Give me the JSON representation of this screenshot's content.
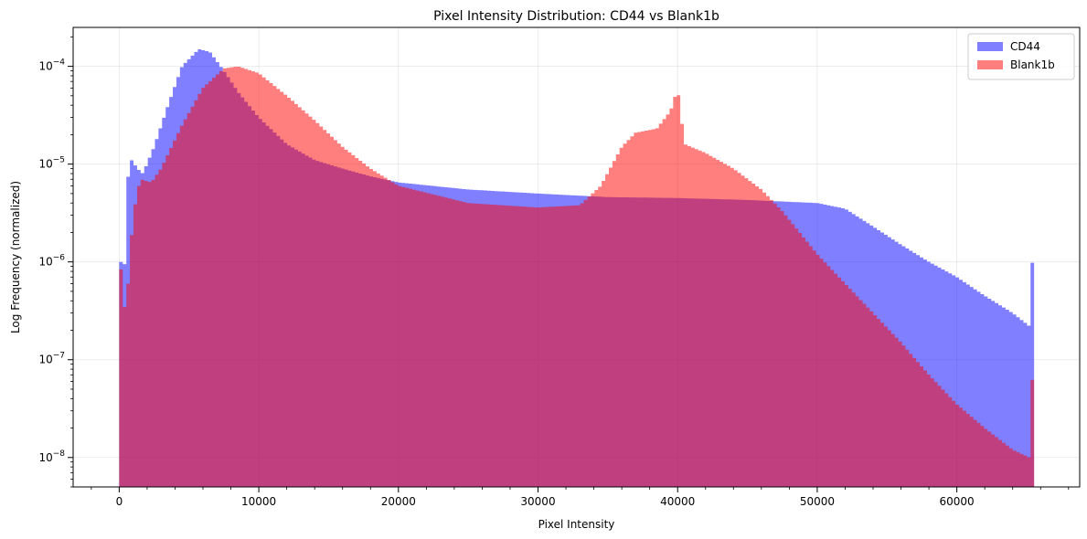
{
  "chart_data": {
    "type": "histogram",
    "title": "Pixel Intensity Distribution: CD44 vs Blank1b",
    "xlabel": "Pixel Intensity",
    "ylabel": "Log Frequency (normalized)",
    "x_scale": "linear",
    "y_scale": "log",
    "xlim": [
      -3300,
      68800
    ],
    "ylim": [
      5e-09,
      0.00025
    ],
    "x_ticks": [
      0,
      10000,
      20000,
      30000,
      40000,
      50000,
      60000
    ],
    "x_tick_labels": [
      "0",
      "10000",
      "20000",
      "30000",
      "40000",
      "50000",
      "60000"
    ],
    "y_ticks": [
      1e-08,
      1e-07,
      1e-06,
      1e-05,
      0.0001
    ],
    "y_tick_labels": [
      {
        "base": "10",
        "exp": "−8"
      },
      {
        "base": "10",
        "exp": "−7"
      },
      {
        "base": "10",
        "exp": "−6"
      },
      {
        "base": "10",
        "exp": "−5"
      },
      {
        "base": "10",
        "exp": "−4"
      }
    ],
    "grid": true,
    "legend_position": "top-right",
    "bin_range": [
      0,
      65535
    ],
    "bin_width": 256,
    "series": [
      {
        "name": "CD44",
        "color": "#0000ff",
        "alpha": 0.5,
        "points": [
          [
            0,
            2.8e-06
          ],
          [
            300,
            2.5e-07
          ],
          [
            500,
            6e-06
          ],
          [
            900,
            1.1e-05
          ],
          [
            1300,
            9e-06
          ],
          [
            1700,
            8e-06
          ],
          [
            2500,
            1.5e-05
          ],
          [
            3500,
            4e-05
          ],
          [
            4500,
            0.0001
          ],
          [
            5700,
            0.00015
          ],
          [
            6500,
            0.00014
          ],
          [
            7500,
            9e-05
          ],
          [
            8500,
            5.5e-05
          ],
          [
            10000,
            3e-05
          ],
          [
            12000,
            1.6e-05
          ],
          [
            14000,
            1.1e-05
          ],
          [
            16000,
            9e-06
          ],
          [
            18000,
            7.5e-06
          ],
          [
            20000,
            6.5e-06
          ],
          [
            25000,
            5.5e-06
          ],
          [
            30000,
            5e-06
          ],
          [
            35000,
            4.6e-06
          ],
          [
            40000,
            4.5e-06
          ],
          [
            45000,
            4.3e-06
          ],
          [
            50000,
            4e-06
          ],
          [
            52000,
            3.5e-06
          ],
          [
            54000,
            2.3e-06
          ],
          [
            56000,
            1.5e-06
          ],
          [
            58000,
            1e-06
          ],
          [
            60000,
            7e-07
          ],
          [
            62000,
            4.5e-07
          ],
          [
            64000,
            3e-07
          ],
          [
            65200,
            2.2e-07
          ],
          [
            65500,
            1.9e-06
          ]
        ]
      },
      {
        "name": "Blank1b",
        "color": "#ff0000",
        "alpha": 0.5,
        "points": [
          [
            0,
            1.8e-06
          ],
          [
            300,
            3e-07
          ],
          [
            600,
            5e-07
          ],
          [
            1000,
            3e-06
          ],
          [
            1500,
            7e-06
          ],
          [
            2300,
            6.5e-06
          ],
          [
            3000,
            9e-06
          ],
          [
            4500,
            2.5e-05
          ],
          [
            6000,
            6e-05
          ],
          [
            7500,
            9.5e-05
          ],
          [
            8500,
            0.0001
          ],
          [
            10000,
            8.5e-05
          ],
          [
            12000,
            5e-05
          ],
          [
            14000,
            2.8e-05
          ],
          [
            16000,
            1.5e-05
          ],
          [
            18000,
            9e-06
          ],
          [
            20000,
            6e-06
          ],
          [
            25000,
            4e-06
          ],
          [
            30000,
            3.6e-06
          ],
          [
            33000,
            3.8e-06
          ],
          [
            34500,
            6e-06
          ],
          [
            36000,
            1.5e-05
          ],
          [
            37000,
            2.1e-05
          ],
          [
            38500,
            2.3e-05
          ],
          [
            39500,
            3.5e-05
          ],
          [
            40000,
            6e-05
          ],
          [
            40500,
            1.6e-05
          ],
          [
            42000,
            1.3e-05
          ],
          [
            44000,
            9e-06
          ],
          [
            46000,
            5.5e-06
          ],
          [
            47500,
            3.3e-06
          ],
          [
            50000,
            1.2e-06
          ],
          [
            52000,
            6e-07
          ],
          [
            54000,
            3e-07
          ],
          [
            56000,
            1.5e-07
          ],
          [
            58000,
            7e-08
          ],
          [
            60000,
            3.5e-08
          ],
          [
            62000,
            2e-08
          ],
          [
            64000,
            1.2e-08
          ],
          [
            65200,
            1e-08
          ],
          [
            65500,
            1.4e-07
          ]
        ]
      }
    ]
  }
}
